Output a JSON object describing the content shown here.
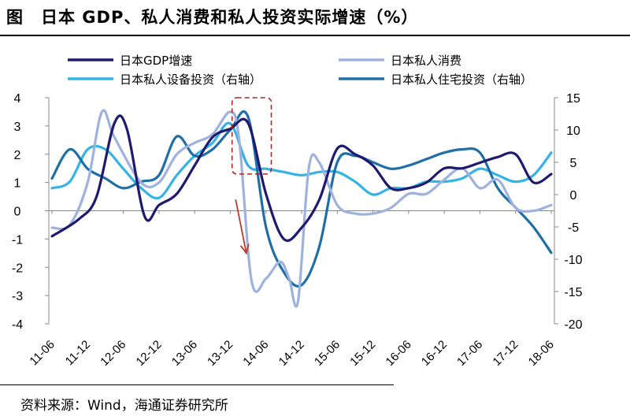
{
  "header": {
    "figure_label": "图",
    "title": "日本 GDP、私人消费和私人投资实际增速（%）"
  },
  "footer": {
    "source": "资料来源：Wind，海通证券研究所"
  },
  "chart_data": {
    "type": "line",
    "title": "日本 GDP、私人消费和私人投资实际增速（%）",
    "x_index_range": [
      0,
      28
    ],
    "xticks": [
      {
        "i": 0,
        "label": "11-06"
      },
      {
        "i": 2,
        "label": "11-12"
      },
      {
        "i": 4,
        "label": "12-06"
      },
      {
        "i": 6,
        "label": "12-12"
      },
      {
        "i": 8,
        "label": "13-06"
      },
      {
        "i": 10,
        "label": "13-12"
      },
      {
        "i": 12,
        "label": "14-06"
      },
      {
        "i": 14,
        "label": "14-12"
      },
      {
        "i": 16,
        "label": "15-06"
      },
      {
        "i": 18,
        "label": "15-12"
      },
      {
        "i": 20,
        "label": "16-06"
      },
      {
        "i": 22,
        "label": "16-12"
      },
      {
        "i": 24,
        "label": "17-06"
      },
      {
        "i": 26,
        "label": "17-12"
      },
      {
        "i": 28,
        "label": "18-06"
      }
    ],
    "y_left": {
      "range": [
        -4,
        4
      ],
      "ticks": [
        4,
        3,
        2,
        1,
        0,
        -1,
        -2,
        -3,
        -4
      ]
    },
    "y_right": {
      "range": [
        -20,
        15
      ],
      "ticks": [
        15,
        10,
        5,
        0,
        -5,
        -10,
        -15,
        -20
      ],
      "label": "右轴"
    },
    "series": [
      {
        "name": "日本GDP增速",
        "axis": "left",
        "color": "#1f1a6e",
        "points": [
          [
            0,
            -0.9
          ],
          [
            1.5,
            -0.3
          ],
          [
            2.5,
            0.5
          ],
          [
            3.5,
            3.1
          ],
          [
            4.2,
            2.9
          ],
          [
            5.2,
            -0.2
          ],
          [
            6,
            0.2
          ],
          [
            7,
            0.6
          ],
          [
            8,
            1.6
          ],
          [
            9,
            2.6
          ],
          [
            10,
            2.9
          ],
          [
            11,
            3.1
          ],
          [
            12,
            0.6
          ],
          [
            13,
            -1.0
          ],
          [
            14,
            -0.6
          ],
          [
            15,
            0.4
          ],
          [
            16,
            2.2
          ],
          [
            17,
            2.0
          ],
          [
            18,
            1.6
          ],
          [
            19,
            0.8
          ],
          [
            20,
            0.8
          ],
          [
            21,
            1.0
          ],
          [
            22,
            1.5
          ],
          [
            23,
            1.5
          ],
          [
            24,
            1.7
          ],
          [
            25,
            1.9
          ],
          [
            26,
            2.0
          ],
          [
            27,
            1.0
          ],
          [
            28,
            1.3
          ]
        ]
      },
      {
        "name": "日本私人消费",
        "axis": "left",
        "color": "#9fb2dd",
        "points": [
          [
            0,
            -0.6
          ],
          [
            1,
            -0.5
          ],
          [
            2,
            1.0
          ],
          [
            2.8,
            3.5
          ],
          [
            3.5,
            2.6
          ],
          [
            5,
            1.0
          ],
          [
            6,
            1.0
          ],
          [
            7,
            2.0
          ],
          [
            8,
            2.4
          ],
          [
            9,
            2.7
          ],
          [
            10,
            3.5
          ],
          [
            10.5,
            2.5
          ],
          [
            11.2,
            -2.5
          ],
          [
            12,
            -2.4
          ],
          [
            12.8,
            -1.8
          ],
          [
            13.3,
            -2.4
          ],
          [
            13.8,
            -3.2
          ],
          [
            14.4,
            1.5
          ],
          [
            15,
            1.7
          ],
          [
            16,
            0.2
          ],
          [
            17,
            -0.1
          ],
          [
            18,
            -0.1
          ],
          [
            19,
            0.1
          ],
          [
            20,
            0.6
          ],
          [
            21,
            0.6
          ],
          [
            22,
            1.1
          ],
          [
            23,
            1.5
          ],
          [
            24,
            0.8
          ],
          [
            25,
            1.1
          ],
          [
            26,
            0.1
          ],
          [
            27,
            0.0
          ],
          [
            28,
            0.2
          ]
        ]
      },
      {
        "name": "日本私人设备投资（右轴）",
        "axis": "right",
        "color": "#33b3e6",
        "points": [
          [
            0,
            1
          ],
          [
            1,
            2
          ],
          [
            2,
            7
          ],
          [
            3,
            7
          ],
          [
            4,
            4
          ],
          [
            5,
            1
          ],
          [
            6,
            -0.5
          ],
          [
            7,
            3
          ],
          [
            8,
            6
          ],
          [
            9,
            8
          ],
          [
            10,
            11
          ],
          [
            11,
            4.5
          ],
          [
            12,
            4
          ],
          [
            13,
            3.5
          ],
          [
            14,
            3
          ],
          [
            15,
            3.5
          ],
          [
            16,
            3.5
          ],
          [
            17,
            2
          ],
          [
            18,
            0
          ],
          [
            19,
            1
          ],
          [
            20,
            1
          ],
          [
            21,
            2
          ],
          [
            22,
            2
          ],
          [
            23,
            2.5
          ],
          [
            24,
            4
          ],
          [
            25,
            3
          ],
          [
            26,
            2
          ],
          [
            27,
            3
          ],
          [
            28,
            6.5
          ]
        ]
      },
      {
        "name": "日本私人住宅投资（右轴）",
        "axis": "right",
        "color": "#1f6fa6",
        "points": [
          [
            0,
            2.5
          ],
          [
            1,
            7
          ],
          [
            2,
            4
          ],
          [
            3,
            2.5
          ],
          [
            4,
            1
          ],
          [
            5,
            2
          ],
          [
            6,
            3
          ],
          [
            7,
            9
          ],
          [
            8,
            6
          ],
          [
            9,
            7
          ],
          [
            10,
            10
          ],
          [
            11,
            12
          ],
          [
            12,
            -5
          ],
          [
            13,
            -12
          ],
          [
            14,
            -14
          ],
          [
            15,
            -8
          ],
          [
            16,
            5
          ],
          [
            17,
            6
          ],
          [
            18,
            5
          ],
          [
            19,
            4
          ],
          [
            20,
            4.5
          ],
          [
            21,
            5.5
          ],
          [
            22,
            6.5
          ],
          [
            23,
            7
          ],
          [
            24,
            6.5
          ],
          [
            25,
            1
          ],
          [
            26,
            -2
          ],
          [
            27,
            -5
          ],
          [
            28,
            -9
          ]
        ]
      }
    ],
    "annotations": [
      {
        "type": "dashed-box",
        "x_range": [
          10.1,
          12.3
        ],
        "y_left_range": [
          1.3,
          4.0
        ],
        "color": "#a52a2a"
      },
      {
        "type": "arrow",
        "from": [
          10.3,
          0.4
        ],
        "to": [
          10.9,
          -1.5
        ],
        "color": "#c0392b"
      }
    ],
    "legend": {
      "position": "top"
    }
  }
}
